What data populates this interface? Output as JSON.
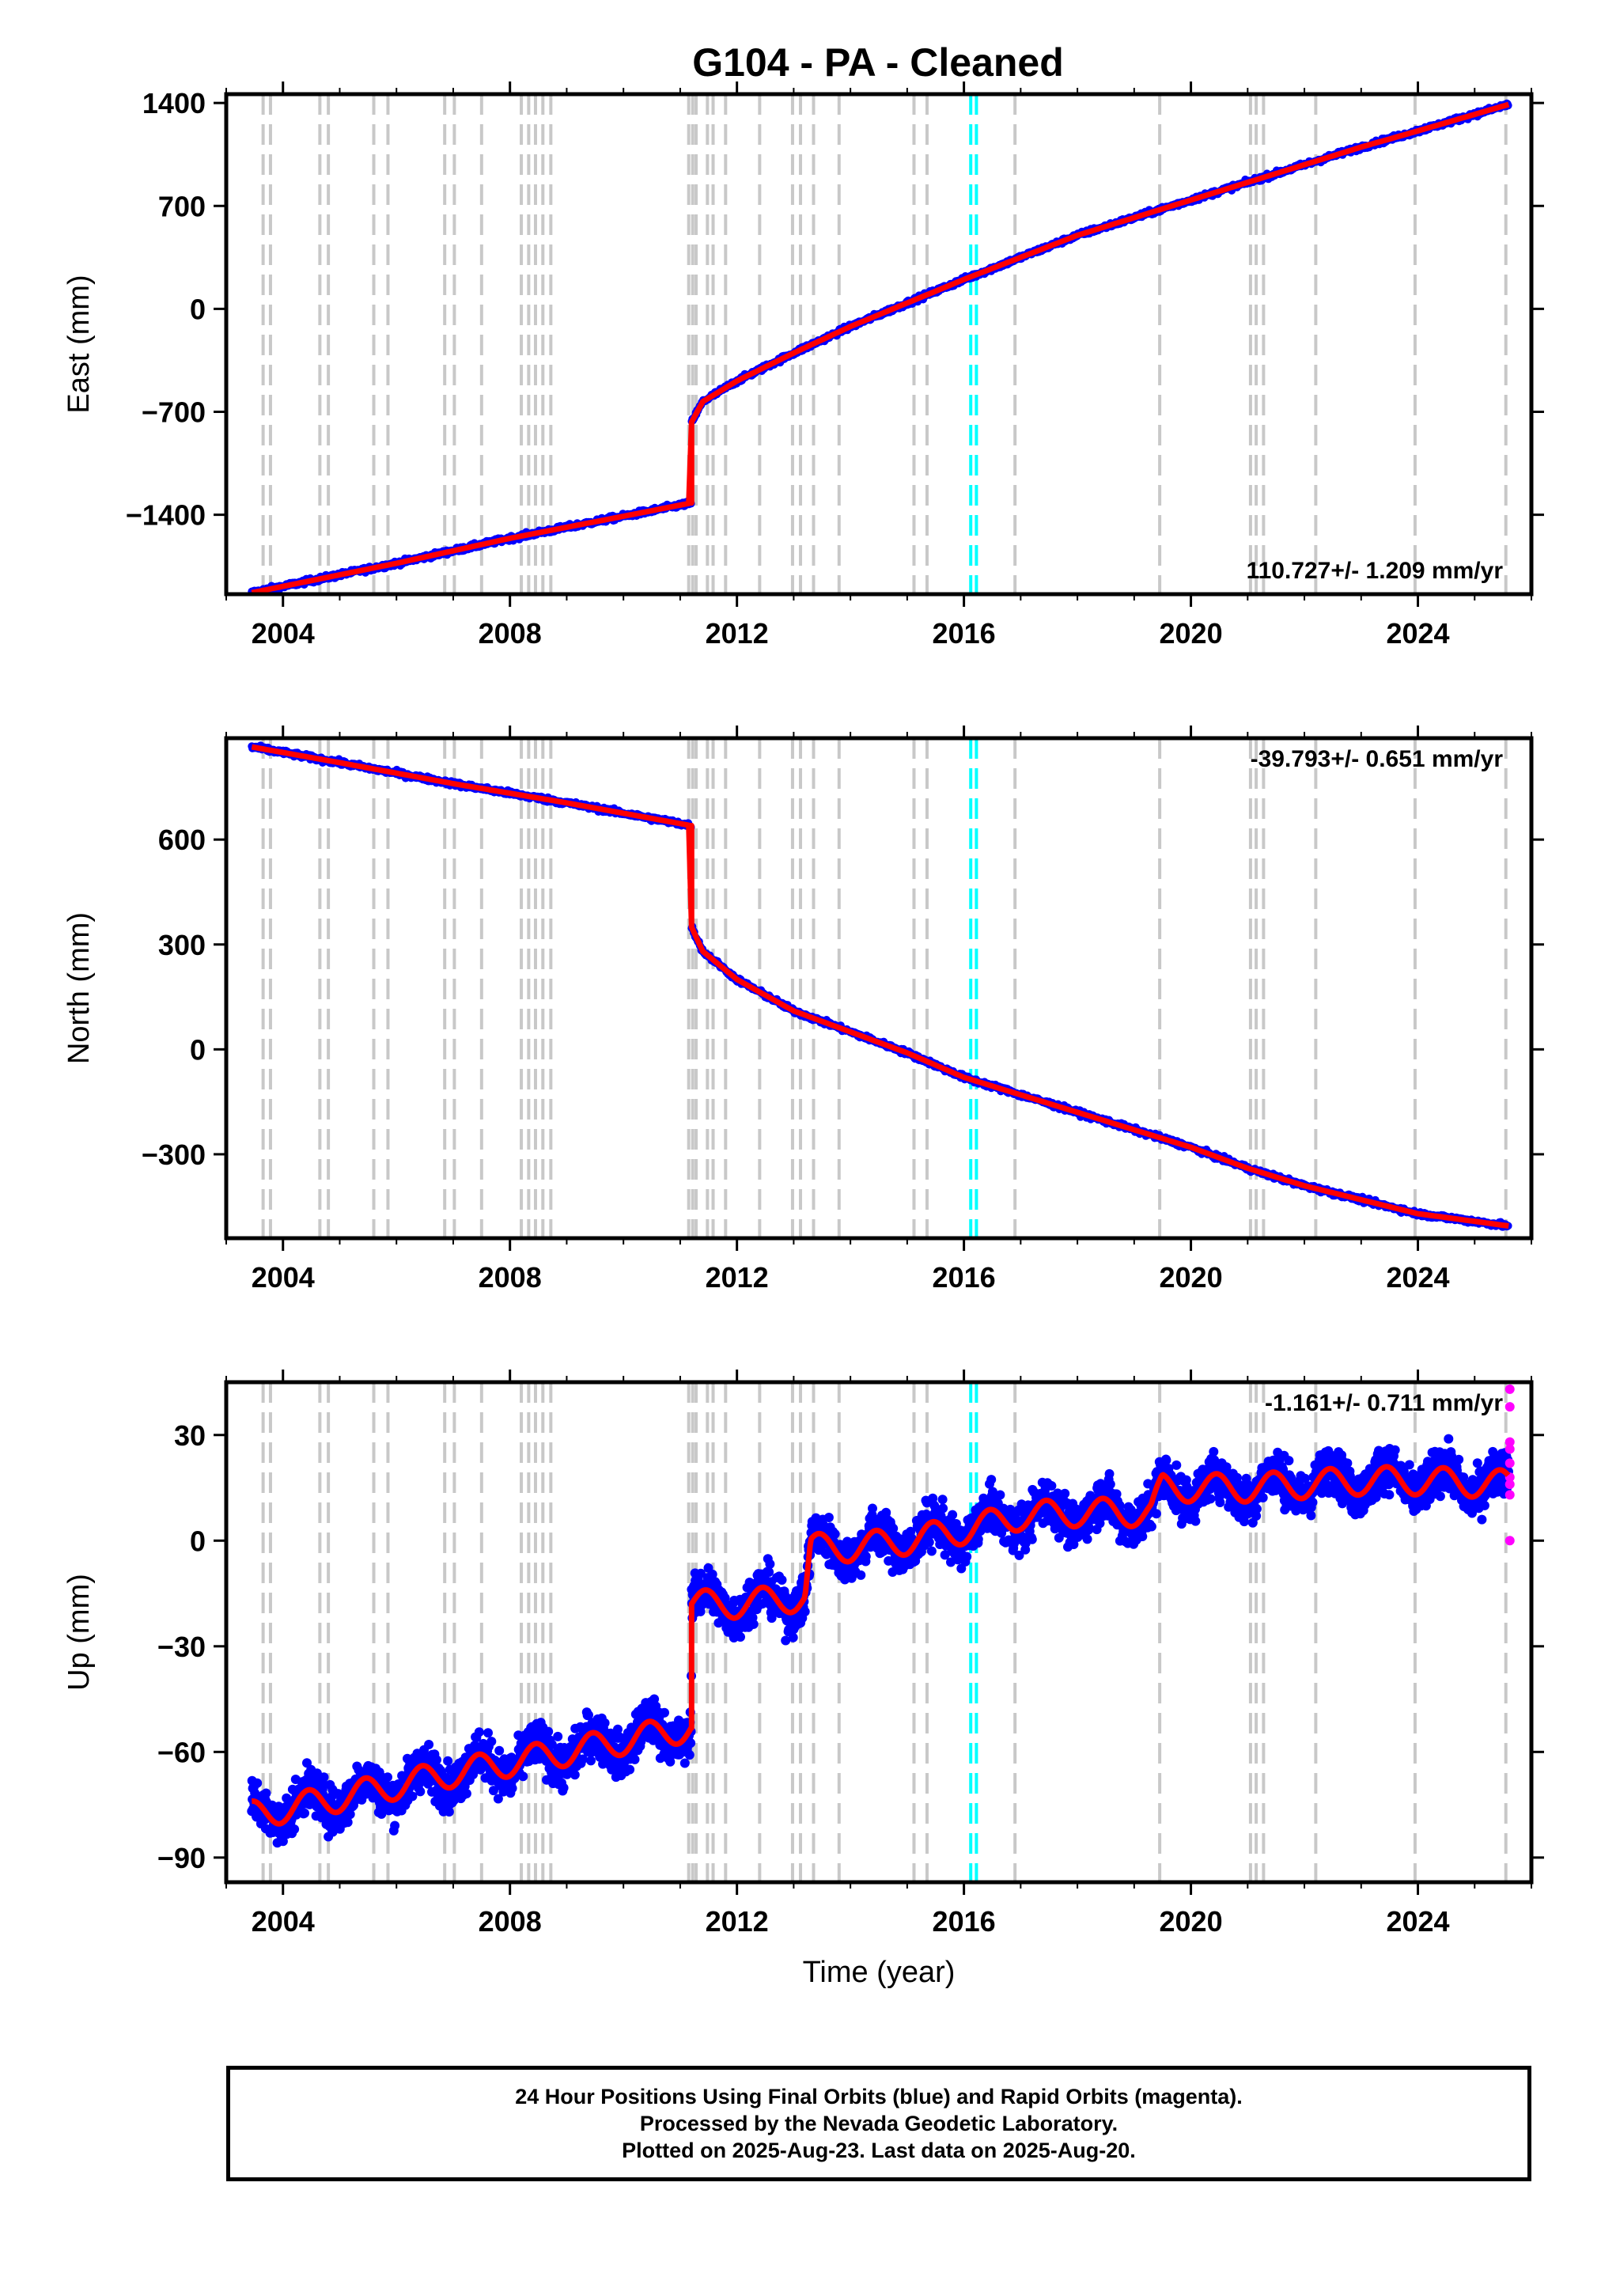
{
  "title": "G104  - PA - Cleaned",
  "x_axis_label": "Time (year)",
  "colors": {
    "final": "#0000ff",
    "rapid": "#ff00ff",
    "model": "#ff0000",
    "event_line": "#c8c8c8",
    "antenna_line": "#00ffff"
  },
  "event_lines": [
    2003.65,
    2003.78,
    2004.65,
    2004.8,
    2005.6,
    2005.85,
    2006.85,
    2007.02,
    2007.5,
    2008.2,
    2008.33,
    2008.45,
    2008.58,
    2008.72,
    2011.15,
    2011.22,
    2011.28,
    2011.48,
    2011.58,
    2011.8,
    2012.4,
    2012.98,
    2013.12,
    2013.35,
    2013.8,
    2015.12,
    2015.35,
    2016.9,
    2019.45,
    2021.05,
    2021.15,
    2021.28,
    2022.2,
    2023.95,
    2025.55
  ],
  "antenna_lines": [
    2016.12,
    2016.22
  ],
  "chart_data": [
    {
      "type": "scatter",
      "name": "east",
      "ylabel": "East (mm)",
      "xlim": [
        2003.0,
        2026.0
      ],
      "ylim": [
        -1940,
        1460
      ],
      "xticks": [
        2004,
        2008,
        2012,
        2016,
        2020,
        2024
      ],
      "yticks": [
        -1400,
        -700,
        0,
        700,
        1400
      ],
      "rate_text": "110.727+/- 1.209 mm/yr",
      "rate_position": "bottom-right",
      "trend": [
        [
          2003.45,
          -1930
        ],
        [
          2006.0,
          -1730
        ],
        [
          2008.0,
          -1560
        ],
        [
          2010.0,
          -1410
        ],
        [
          2011.19,
          -1320
        ],
        [
          2011.2,
          -770
        ],
        [
          2011.4,
          -630
        ],
        [
          2012.0,
          -490
        ],
        [
          2013.0,
          -300
        ],
        [
          2014.0,
          -120
        ],
        [
          2015.0,
          40
        ],
        [
          2016.0,
          200
        ],
        [
          2017.0,
          350
        ],
        [
          2018.0,
          500
        ],
        [
          2019.0,
          620
        ],
        [
          2020.0,
          740
        ],
        [
          2021.0,
          860
        ],
        [
          2022.0,
          980
        ],
        [
          2023.0,
          1100
        ],
        [
          2024.0,
          1210
        ],
        [
          2025.6,
          1390
        ]
      ]
    },
    {
      "type": "scatter",
      "name": "north",
      "ylabel": "North (mm)",
      "xlim": [
        2003.0,
        2026.0
      ],
      "ylim": [
        -540,
        890
      ],
      "xticks": [
        2004,
        2008,
        2012,
        2016,
        2020,
        2024
      ],
      "yticks": [
        -300,
        0,
        300,
        600
      ],
      "rate_text": "-39.793+/- 0.651 mm/yr",
      "rate_position": "top-right",
      "trend": [
        [
          2003.45,
          865
        ],
        [
          2005.0,
          820
        ],
        [
          2007.0,
          760
        ],
        [
          2009.0,
          705
        ],
        [
          2011.19,
          640
        ],
        [
          2011.2,
          350
        ],
        [
          2011.4,
          280
        ],
        [
          2012.0,
          200
        ],
        [
          2013.0,
          110
        ],
        [
          2014.0,
          50
        ],
        [
          2015.0,
          -10
        ],
        [
          2016.0,
          -80
        ],
        [
          2017.0,
          -130
        ],
        [
          2018.0,
          -180
        ],
        [
          2019.0,
          -230
        ],
        [
          2020.0,
          -280
        ],
        [
          2021.0,
          -340
        ],
        [
          2022.0,
          -390
        ],
        [
          2023.0,
          -430
        ],
        [
          2024.0,
          -470
        ],
        [
          2025.6,
          -505
        ]
      ]
    },
    {
      "type": "scatter",
      "name": "up",
      "ylabel": "Up (mm)",
      "xlim": [
        2003.0,
        2026.0
      ],
      "ylim": [
        -97,
        45
      ],
      "xticks": [
        2004,
        2008,
        2012,
        2016,
        2020,
        2024
      ],
      "yticks": [
        -90,
        -60,
        -30,
        0,
        30
      ],
      "rate_text": "-1.161+/- 0.711 mm/yr",
      "rate_position": "top-right",
      "trend": [
        [
          2003.45,
          -78
        ],
        [
          2005.0,
          -73
        ],
        [
          2007.0,
          -66
        ],
        [
          2009.0,
          -60
        ],
        [
          2011.19,
          -53
        ],
        [
          2011.2,
          -18
        ],
        [
          2012.0,
          -18
        ],
        [
          2013.2,
          -16
        ],
        [
          2013.3,
          -2
        ],
        [
          2014.0,
          -2
        ],
        [
          2015.0,
          0
        ],
        [
          2016.0,
          3
        ],
        [
          2017.0,
          7
        ],
        [
          2018.0,
          8
        ],
        [
          2019.3,
          8
        ],
        [
          2019.5,
          15
        ],
        [
          2020.0,
          15
        ],
        [
          2021.0,
          15
        ],
        [
          2022.0,
          16
        ],
        [
          2023.0,
          17
        ],
        [
          2024.0,
          17
        ],
        [
          2025.6,
          16
        ]
      ],
      "rapid_points": [
        [
          2025.62,
          43
        ],
        [
          2025.62,
          38
        ],
        [
          2025.62,
          28
        ],
        [
          2025.62,
          26
        ],
        [
          2025.62,
          22
        ],
        [
          2025.62,
          18
        ],
        [
          2025.62,
          16
        ],
        [
          2025.62,
          13
        ],
        [
          2025.62,
          0
        ]
      ]
    }
  ],
  "footer": {
    "line1": "24 Hour Positions Using Final Orbits (blue) and Rapid Orbits (magenta).",
    "line2": "Processed by the Nevada Geodetic Laboratory.",
    "line3": "Plotted on 2025-Aug-23. Last data on 2025-Aug-20."
  }
}
